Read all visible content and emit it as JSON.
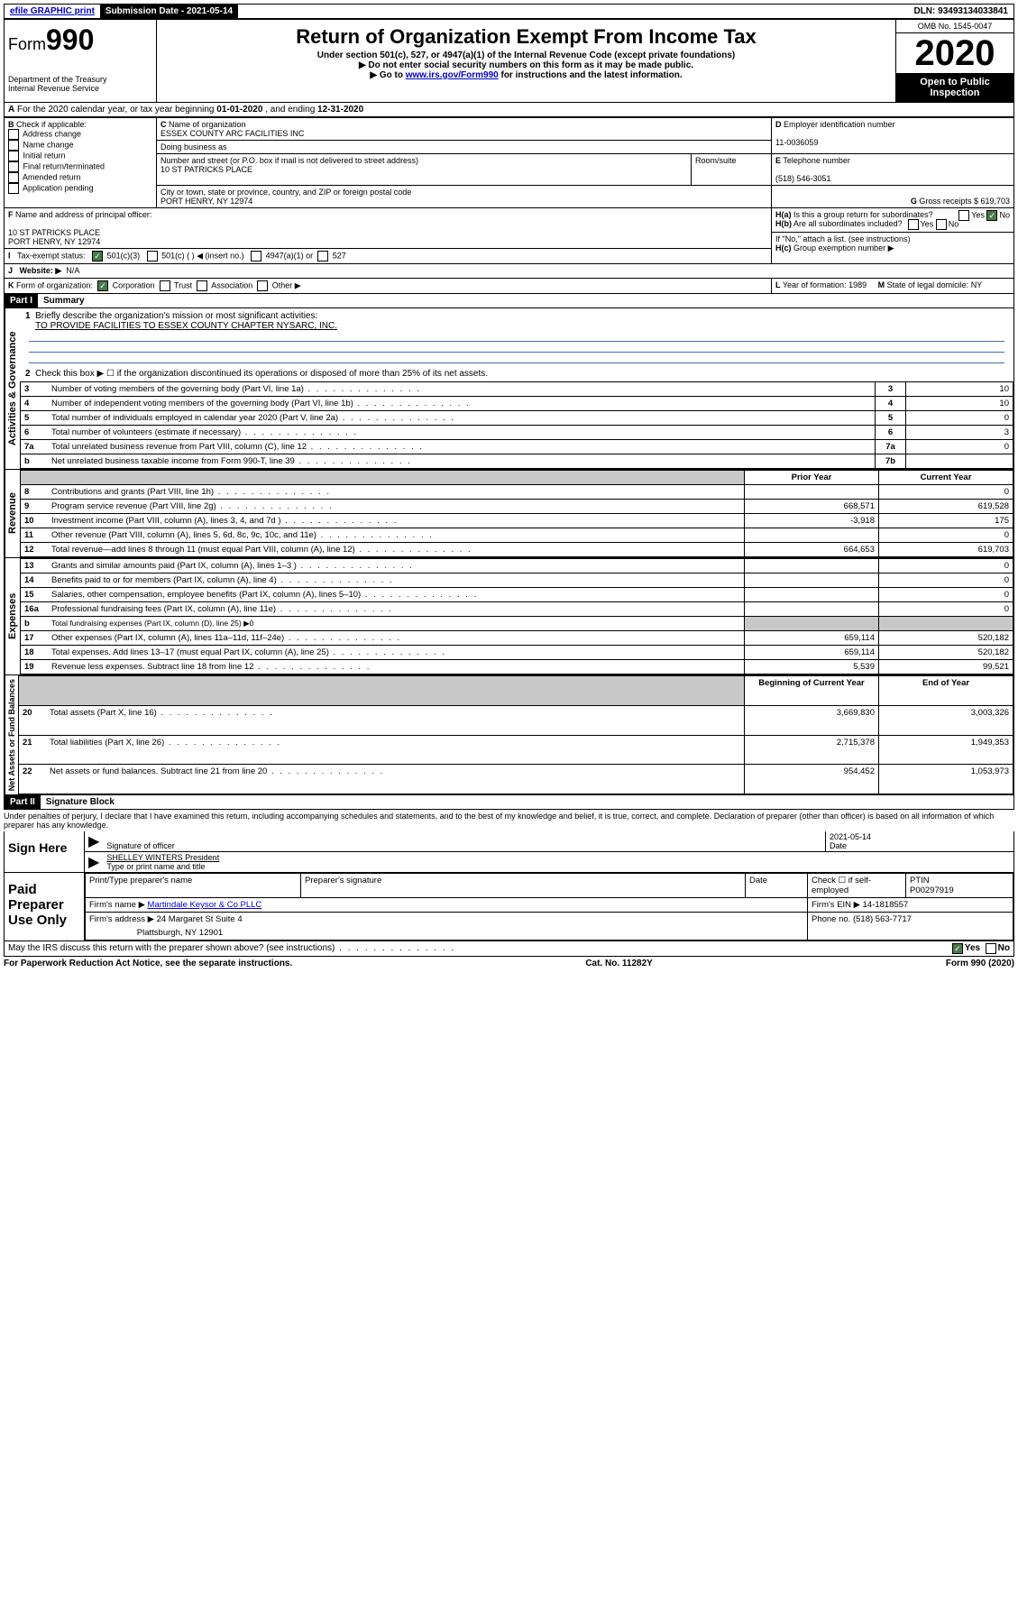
{
  "topbar": {
    "efile": "efile GRAPHIC print",
    "subdate_label": "Submission Date - 2021-05-14",
    "dln": "DLN: 93493134033841"
  },
  "header": {
    "form_prefix": "Form",
    "form_num": "990",
    "dept": "Department of the Treasury\nInternal Revenue Service",
    "title": "Return of Organization Exempt From Income Tax",
    "sub1": "Under section 501(c), 527, or 4947(a)(1) of the Internal Revenue Code (except private foundations)",
    "sub2": "▶ Do not enter social security numbers on this form as it may be made public.",
    "sub3_pre": "▶ Go to ",
    "sub3_link": "www.irs.gov/Form990",
    "sub3_post": " for instructions and the latest information.",
    "omb": "OMB No. 1545-0047",
    "year": "2020",
    "open": "Open to Public Inspection"
  },
  "periodA": {
    "text_pre": "For the 2020 calendar year, or tax year beginning ",
    "begin": "01-01-2020",
    "mid": " , and ending ",
    "end": "12-31-2020"
  },
  "boxB": {
    "label": "Check if applicable:",
    "opts": [
      "Address change",
      "Name change",
      "Initial return",
      "Final return/terminated",
      "Amended return",
      "Application pending"
    ]
  },
  "boxC": {
    "label_name": "Name of organization",
    "org": "ESSEX COUNTY ARC FACILITIES INC",
    "dba_label": "Doing business as",
    "street_label": "Number and street (or P.O. box if mail is not delivered to street address)",
    "street": "10 ST PATRICKS PLACE",
    "room_label": "Room/suite",
    "city_label": "City or town, state or province, country, and ZIP or foreign postal code",
    "city": "PORT HENRY, NY  12974"
  },
  "boxD": {
    "label": "Employer identification number",
    "ein": "11-0036059"
  },
  "boxE": {
    "label": "Telephone number",
    "phone": "(518) 546-3051"
  },
  "boxG": {
    "label": "Gross receipts $ ",
    "val": "619,703"
  },
  "boxF": {
    "label": "Name and address of principal officer:",
    "addr1": "10 ST PATRICKS PLACE",
    "addr2": "PORT HENRY, NY  12974"
  },
  "boxH": {
    "a_label": "Is this a group return for subordinates?",
    "b_label": "Are all subordinates included?",
    "b_note": "If \"No,\" attach a list. (see instructions)",
    "c_label": "Group exemption number ▶"
  },
  "boxI": {
    "label": "Tax-exempt status:",
    "c3": "501(c)(3)",
    "c": "501(c) (  ) ◀ (insert no.)",
    "a1": "4947(a)(1) or",
    "s527": "527"
  },
  "boxJ": {
    "label": "Website: ▶",
    "val": "N/A"
  },
  "boxK": {
    "label": "Form of organization:",
    "opts": [
      "Corporation",
      "Trust",
      "Association",
      "Other ▶"
    ]
  },
  "boxL": {
    "label": "Year of formation: ",
    "val": "1989"
  },
  "boxM": {
    "label": "State of legal domicile: ",
    "val": "NY"
  },
  "part1": {
    "header": "Part I",
    "title": "Summary",
    "vlabels": [
      "Activities & Governance",
      "Revenue",
      "Expenses",
      "Net Assets or Fund Balances"
    ],
    "q1_label": "Briefly describe the organization's mission or most significant activities:",
    "q1_val": "TO PROVIDE FACILITIES TO ESSEX COUNTY CHAPTER NYSARC, INC.",
    "q2": "Check this box ▶ ☐  if the organization discontinued its operations or disposed of more than 25% of its net assets.",
    "rows_gov": [
      {
        "n": "3",
        "t": "Number of voting members of the governing body (Part VI, line 1a)",
        "c": "3",
        "v": "10"
      },
      {
        "n": "4",
        "t": "Number of independent voting members of the governing body (Part VI, line 1b)",
        "c": "4",
        "v": "10"
      },
      {
        "n": "5",
        "t": "Total number of individuals employed in calendar year 2020 (Part V, line 2a)",
        "c": "5",
        "v": "0"
      },
      {
        "n": "6",
        "t": "Total number of volunteers (estimate if necessary)",
        "c": "6",
        "v": "3"
      },
      {
        "n": "7a",
        "t": "Total unrelated business revenue from Part VIII, column (C), line 12",
        "c": "7a",
        "v": "0"
      },
      {
        "n": "b",
        "t": "Net unrelated business taxable income from Form 990-T, line 39",
        "c": "7b",
        "v": ""
      }
    ],
    "col_prior": "Prior Year",
    "col_current": "Current Year",
    "rows_rev": [
      {
        "n": "8",
        "t": "Contributions and grants (Part VIII, line 1h)",
        "p": "",
        "c": "0"
      },
      {
        "n": "9",
        "t": "Program service revenue (Part VIII, line 2g)",
        "p": "668,571",
        "c": "619,528"
      },
      {
        "n": "10",
        "t": "Investment income (Part VIII, column (A), lines 3, 4, and 7d )",
        "p": "-3,918",
        "c": "175"
      },
      {
        "n": "11",
        "t": "Other revenue (Part VIII, column (A), lines 5, 6d, 8c, 9c, 10c, and 11e)",
        "p": "",
        "c": "0"
      },
      {
        "n": "12",
        "t": "Total revenue—add lines 8 through 11 (must equal Part VIII, column (A), line 12)",
        "p": "664,653",
        "c": "619,703"
      }
    ],
    "rows_exp": [
      {
        "n": "13",
        "t": "Grants and similar amounts paid (Part IX, column (A), lines 1–3 )",
        "p": "",
        "c": "0"
      },
      {
        "n": "14",
        "t": "Benefits paid to or for members (Part IX, column (A), line 4)",
        "p": "",
        "c": "0"
      },
      {
        "n": "15",
        "t": "Salaries, other compensation, employee benefits (Part IX, column (A), lines 5–10)",
        "p": "",
        "c": "0"
      },
      {
        "n": "16a",
        "t": "Professional fundraising fees (Part IX, column (A), line 11e)",
        "p": "",
        "c": "0"
      },
      {
        "n": "b",
        "t": "Total fundraising expenses (Part IX, column (D), line 25) ▶0",
        "p": null,
        "c": null
      },
      {
        "n": "17",
        "t": "Other expenses (Part IX, column (A), lines 11a–11d, 11f–24e)",
        "p": "659,114",
        "c": "520,182"
      },
      {
        "n": "18",
        "t": "Total expenses. Add lines 13–17 (must equal Part IX, column (A), line 25)",
        "p": "659,114",
        "c": "520,182"
      },
      {
        "n": "19",
        "t": "Revenue less expenses. Subtract line 18 from line 12",
        "p": "5,539",
        "c": "99,521"
      }
    ],
    "col_begin": "Beginning of Current Year",
    "col_end": "End of Year",
    "rows_net": [
      {
        "n": "20",
        "t": "Total assets (Part X, line 16)",
        "p": "3,669,830",
        "c": "3,003,326"
      },
      {
        "n": "21",
        "t": "Total liabilities (Part X, line 26)",
        "p": "2,715,378",
        "c": "1,949,353"
      },
      {
        "n": "22",
        "t": "Net assets or fund balances. Subtract line 21 from line 20",
        "p": "954,452",
        "c": "1,053,973"
      }
    ]
  },
  "part2": {
    "header": "Part II",
    "title": "Signature Block",
    "perjury": "Under penalties of perjury, I declare that I have examined this return, including accompanying schedules and statements, and to the best of my knowledge and belief, it is true, correct, and complete. Declaration of preparer (other than officer) is based on all information of which preparer has any knowledge."
  },
  "sign": {
    "here": "Sign Here",
    "sig_officer": "Signature of officer",
    "date_label": "Date",
    "date": "2021-05-14",
    "name": "SHELLEY WINTERS President",
    "name_label": "Type or print name and title"
  },
  "paid": {
    "label": "Paid Preparer Use Only",
    "h1": "Print/Type preparer's name",
    "h2": "Preparer's signature",
    "h3": "Date",
    "h4_check": "Check ☐ if self-employed",
    "h5_label": "PTIN",
    "ptin": "P00297919",
    "firm_name_label": "Firm's name    ▶",
    "firm_name": "Martindale Keysor & Co PLLC",
    "firm_ein_label": "Firm's EIN ▶",
    "firm_ein": "14-1818557",
    "firm_addr_label": "Firm's address ▶",
    "firm_addr1": "24 Margaret St Suite 4",
    "firm_addr2": "Plattsburgh, NY  12901",
    "phone_label": "Phone no. ",
    "phone": "(518) 563-7717"
  },
  "discuss": "May the IRS discuss this return with the preparer shown above? (see instructions)",
  "footer": {
    "left": "For Paperwork Reduction Act Notice, see the separate instructions.",
    "mid": "Cat. No. 11282Y",
    "right": "Form 990 (2020)"
  }
}
